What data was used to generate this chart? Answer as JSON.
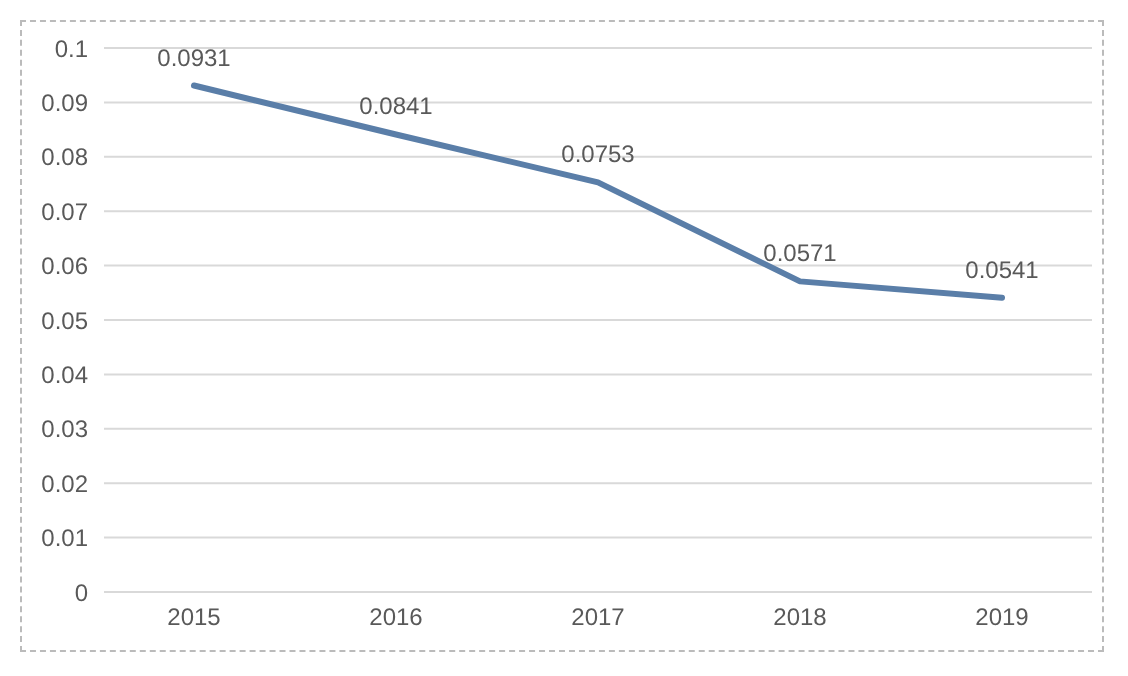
{
  "chart_data": {
    "type": "line",
    "categories": [
      "2015",
      "2016",
      "2017",
      "2018",
      "2019"
    ],
    "series": [
      {
        "color": "#5a7ea8",
        "values": [
          0.0931,
          0.0841,
          0.0753,
          0.0571,
          0.0541
        ]
      }
    ],
    "ylim": [
      0,
      0.1
    ],
    "yticks": [
      0,
      0.01,
      0.02,
      0.03,
      0.04,
      0.05,
      0.06,
      0.07,
      0.08,
      0.09,
      0.1
    ],
    "grid": "y",
    "data_labels": true,
    "marker": "none",
    "line_style": "solid",
    "legend": false
  }
}
